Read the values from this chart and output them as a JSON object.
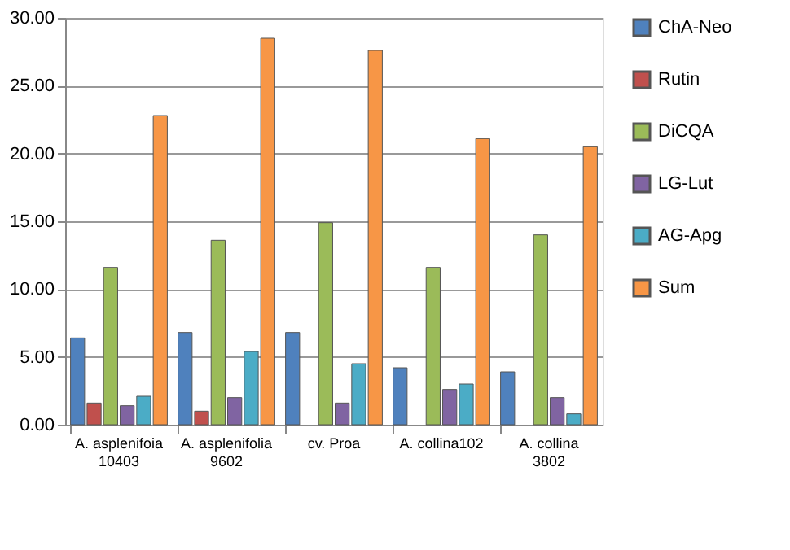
{
  "chart_data": {
    "type": "bar",
    "categories": [
      "A. asplenifoia\n10403",
      "A. asplenifolia\n9602",
      "cv. Proa",
      "A. collina102",
      "A. collina\n3802"
    ],
    "series": [
      {
        "name": "ChA-Neo",
        "color": "#4f81bd",
        "values": [
          6.4,
          6.8,
          6.8,
          4.2,
          3.9
        ]
      },
      {
        "name": "Rutin",
        "color": "#c0504d",
        "values": [
          1.6,
          1.0,
          null,
          null,
          null
        ]
      },
      {
        "name": "DiCQA",
        "color": "#9bbb59",
        "values": [
          11.6,
          13.6,
          14.9,
          11.6,
          14.0
        ]
      },
      {
        "name": "LG-Lut",
        "color": "#8064a2",
        "values": [
          1.4,
          2.0,
          1.6,
          2.6,
          2.0
        ]
      },
      {
        "name": "AG-Apg",
        "color": "#4bacc6",
        "values": [
          2.1,
          5.4,
          4.5,
          3.0,
          0.8
        ]
      },
      {
        "name": "Sum",
        "color": "#f79646",
        "values": [
          22.8,
          28.5,
          27.6,
          21.1,
          20.5
        ]
      }
    ],
    "ylim": [
      0,
      30
    ],
    "yticks": [
      {
        "value": 0,
        "label": "0.00"
      },
      {
        "value": 5,
        "label": "5.00"
      },
      {
        "value": 10,
        "label": "10.00"
      },
      {
        "value": 15,
        "label": "15.00"
      },
      {
        "value": 20,
        "label": "20.00"
      },
      {
        "value": 25,
        "label": "25.00"
      },
      {
        "value": 30,
        "label": "30.00"
      }
    ],
    "grid": "y",
    "legend": "right"
  }
}
